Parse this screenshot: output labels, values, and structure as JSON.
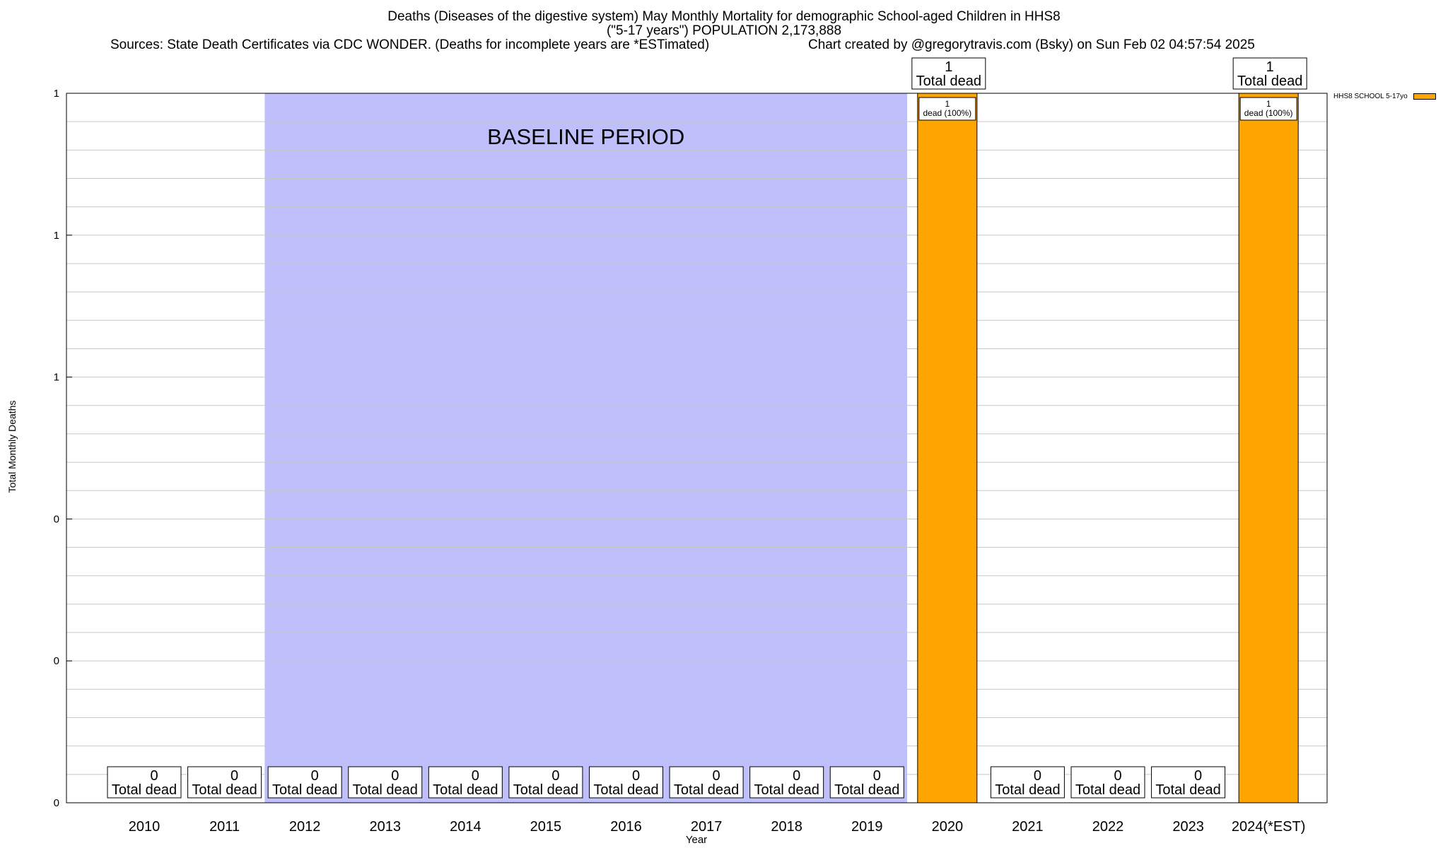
{
  "header": {
    "title_line1": "Deaths (Diseases of the digestive system) May Monthly Mortality for demographic School-aged Children in HHS8",
    "title_line2": "(\"5-17 years\") POPULATION 2,173,888",
    "sources": "Sources: State Death Certificates via CDC WONDER. (Deaths for incomplete years are *ESTimated)",
    "credit": "Chart created by @gregorytravis.com (Bsky) on Sun Feb 02 04:57:54 2025"
  },
  "chart_data": {
    "type": "bar",
    "ylabel": "Total Monthly Deaths",
    "xlabel": "Year",
    "ylim": [
      0,
      1
    ],
    "y_tick_labels": [
      "0",
      "0",
      "0",
      "1",
      "1",
      "1"
    ],
    "grid": true,
    "legend_position": "top-right",
    "baseline_label": "BASELINE PERIOD",
    "baseline_range": [
      "2012",
      "2019"
    ],
    "total_label_text": "Total dead",
    "categories": [
      "2010",
      "2011",
      "2012",
      "2013",
      "2014",
      "2015",
      "2016",
      "2017",
      "2018",
      "2019",
      "2020",
      "2021",
      "2022",
      "2023",
      "2024(*EST)"
    ],
    "series": [
      {
        "name": "HHS8 SCHOOL 5-17yo",
        "color": "#ffa500",
        "values": [
          0,
          0,
          0,
          0,
          0,
          0,
          0,
          0,
          0,
          0,
          1,
          0,
          0,
          0,
          1
        ],
        "segment_labels": [
          "",
          "",
          "",
          "",
          "",
          "",
          "",
          "",
          "",
          "",
          "1\ndead (100%)",
          "",
          "",
          "",
          "1\ndead (100%)"
        ]
      }
    ],
    "totals": [
      0,
      0,
      0,
      0,
      0,
      0,
      0,
      0,
      0,
      0,
      1,
      0,
      0,
      0,
      1
    ],
    "baseline_color": "#bfbffc"
  }
}
